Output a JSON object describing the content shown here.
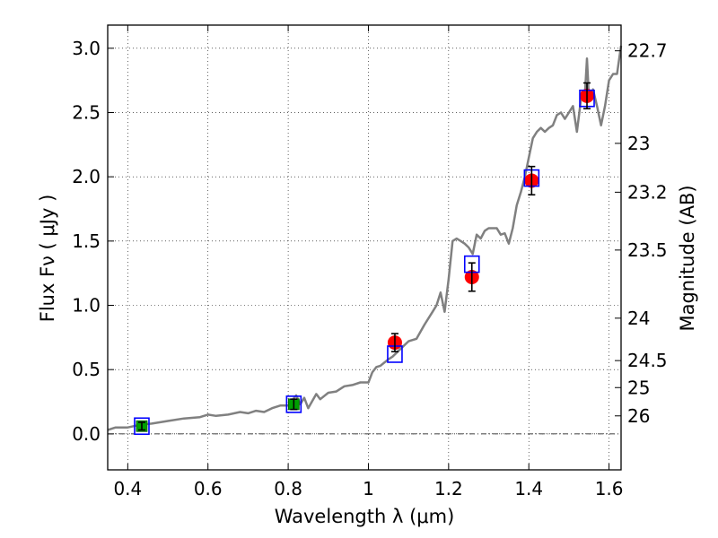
{
  "chart_data": {
    "type": "line",
    "title": "",
    "xlabel": "Wavelength  λ (μm)",
    "ylabel": "Flux  Fν  ( μJy )",
    "ylabel_right": "Magnitude (AB)",
    "xlim": [
      0.35,
      1.63
    ],
    "ylim": [
      -0.28,
      3.18
    ],
    "grid": true,
    "x_ticks": [
      0.4,
      0.6,
      0.8,
      1.0,
      1.2,
      1.4,
      1.6
    ],
    "x_tick_labels": [
      "0.4",
      "0.6",
      "0.8",
      "1",
      "1.2",
      "1.4",
      "1.6"
    ],
    "y_ticks": [
      0.0,
      0.5,
      1.0,
      1.5,
      2.0,
      2.5,
      3.0
    ],
    "y_tick_labels": [
      "0.0",
      "0.5",
      "1.0",
      "1.5",
      "2.0",
      "2.5",
      "3.0"
    ],
    "right_ticks": [
      {
        "label": "22.7",
        "flux": 2.98
      },
      {
        "label": "23",
        "flux": 2.26
      },
      {
        "label": "23.2",
        "flux": 1.88
      },
      {
        "label": "23.5",
        "flux": 1.43
      },
      {
        "label": "24",
        "flux": 0.9
      },
      {
        "label": "24.5",
        "flux": 0.57
      },
      {
        "label": "25",
        "flux": 0.36
      },
      {
        "label": "26",
        "flux": 0.14
      }
    ],
    "series": [
      {
        "kind": "model-spectrum",
        "color": "#808080",
        "x": [
          0.35,
          0.37,
          0.4,
          0.43,
          0.46,
          0.5,
          0.54,
          0.58,
          0.6,
          0.62,
          0.65,
          0.68,
          0.7,
          0.72,
          0.74,
          0.76,
          0.78,
          0.8,
          0.82,
          0.83,
          0.84,
          0.85,
          0.87,
          0.88,
          0.9,
          0.92,
          0.94,
          0.96,
          0.98,
          1.0,
          1.01,
          1.02,
          1.03,
          1.05,
          1.06,
          1.08,
          1.1,
          1.12,
          1.14,
          1.16,
          1.17,
          1.18,
          1.19,
          1.2,
          1.21,
          1.22,
          1.23,
          1.24,
          1.25,
          1.26,
          1.27,
          1.28,
          1.29,
          1.3,
          1.32,
          1.33,
          1.34,
          1.35,
          1.36,
          1.37,
          1.38,
          1.39,
          1.4,
          1.41,
          1.42,
          1.43,
          1.44,
          1.45,
          1.46,
          1.47,
          1.48,
          1.49,
          1.5,
          1.51,
          1.52,
          1.53,
          1.54,
          1.545,
          1.55,
          1.56,
          1.57,
          1.58,
          1.59,
          1.6,
          1.61,
          1.62,
          1.63
        ],
        "y": [
          0.03,
          0.05,
          0.05,
          0.07,
          0.08,
          0.1,
          0.12,
          0.13,
          0.15,
          0.14,
          0.15,
          0.17,
          0.16,
          0.18,
          0.17,
          0.2,
          0.22,
          0.22,
          0.3,
          0.23,
          0.28,
          0.2,
          0.31,
          0.27,
          0.32,
          0.33,
          0.37,
          0.38,
          0.4,
          0.4,
          0.48,
          0.52,
          0.53,
          0.58,
          0.6,
          0.66,
          0.72,
          0.74,
          0.85,
          0.95,
          1.0,
          1.1,
          0.95,
          1.2,
          1.5,
          1.52,
          1.5,
          1.48,
          1.45,
          1.4,
          1.55,
          1.52,
          1.58,
          1.6,
          1.6,
          1.55,
          1.56,
          1.48,
          1.6,
          1.78,
          1.88,
          2.0,
          2.15,
          2.3,
          2.35,
          2.38,
          2.35,
          2.38,
          2.4,
          2.48,
          2.5,
          2.45,
          2.5,
          2.55,
          2.35,
          2.6,
          2.65,
          2.92,
          2.6,
          2.68,
          2.55,
          2.4,
          2.55,
          2.75,
          2.8,
          2.8,
          3.02
        ]
      },
      {
        "kind": "model-photometry",
        "marker": "open-square",
        "color": "#0000ff",
        "x": [
          0.435,
          0.814,
          1.066,
          1.258,
          1.407,
          1.545
        ],
        "y": [
          0.06,
          0.23,
          0.62,
          1.32,
          1.99,
          2.61
        ]
      },
      {
        "kind": "optical-photometry",
        "marker": "filled-square",
        "color": "#00a000",
        "x": [
          0.435,
          0.814
        ],
        "y": [
          0.06,
          0.23
        ],
        "err": [
          0.03,
          0.04
        ]
      },
      {
        "kind": "nir-photometry",
        "marker": "filled-circle",
        "color": "#ff0000",
        "x": [
          1.066,
          1.258,
          1.407,
          1.545
        ],
        "y": [
          0.71,
          1.22,
          1.97,
          2.63
        ],
        "err": [
          0.07,
          0.11,
          0.11,
          0.1
        ]
      }
    ]
  }
}
